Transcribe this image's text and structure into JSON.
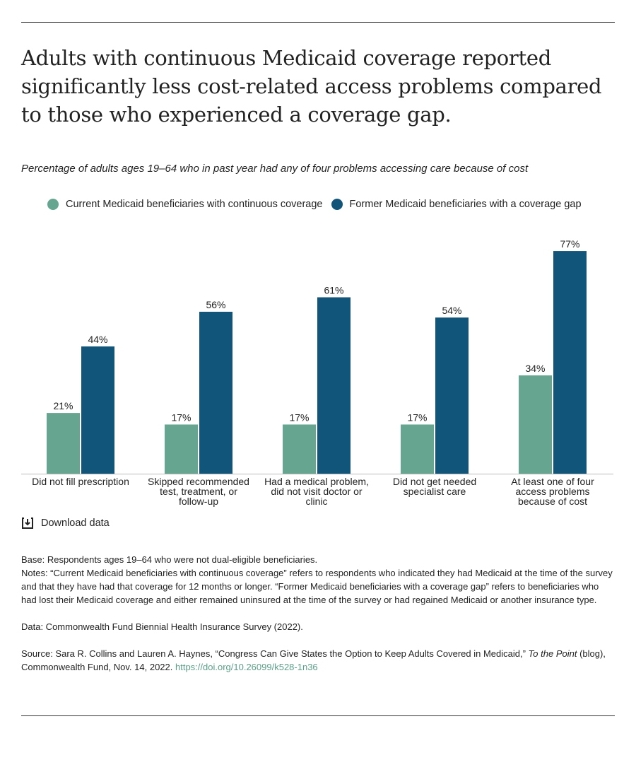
{
  "title": "Adults with continuous Medicaid coverage reported significantly less cost-related access problems compared to those who experienced a coverage gap.",
  "chart_data": {
    "type": "bar",
    "subtitle": "Percentage of adults ages 19–64 who in past year had any of four problems accessing care because of cost",
    "categories": [
      [
        "Did not fill prescription"
      ],
      [
        "Skipped recommended",
        "test, treatment, or",
        "follow-up"
      ],
      [
        "Had a medical problem,",
        "did not visit doctor or",
        "clinic"
      ],
      [
        "Did not get needed",
        "specialist care"
      ],
      [
        "At least one of four",
        "access problems",
        "because of cost"
      ]
    ],
    "series": [
      {
        "name": "Current Medicaid beneficiaries with continuous coverage",
        "color": "#66a690",
        "values": [
          21,
          17,
          17,
          17,
          34
        ],
        "labels": [
          "21%",
          "17%",
          "17%",
          "17%",
          "34%"
        ]
      },
      {
        "name": "Former Medicaid beneficiaries with a coverage gap",
        "color": "#12557a",
        "values": [
          44,
          56,
          61,
          54,
          77
        ],
        "labels": [
          "44%",
          "56%",
          "61%",
          "54%",
          "77%"
        ]
      }
    ],
    "ylim": [
      0,
      100
    ],
    "grid": false,
    "legend": "top-left"
  },
  "download_label": "Download data",
  "notes": {
    "base": "Base: Respondents ages 19–64 who were not dual-eligible beneficiaries.",
    "notes": "Notes: “Current Medicaid beneficiaries with continuous coverage” refers to respondents who indicated they had Medicaid at the time of the survey and that they have had that coverage for 12 months or longer. “Former Medicaid beneficiaries with a coverage gap” refers to beneficiaries who had lost their Medicaid coverage and either remained uninsured at the time of the survey or had regained Medicaid or another insurance type.",
    "data": "Data:  Commonwealth Fund Biennial Health Insurance Survey (2022).",
    "source_pre": "Source: Sara R. Collins and Lauren A. Haynes, “Congress Can Give States the Option to Keep Adults Covered in Medicaid,” ",
    "source_italic": "To the Point",
    "source_post": " (blog), Commonwealth Fund, Nov. 14, 2022. ",
    "doi": "https://doi.org/10.26099/k528-1n36"
  }
}
